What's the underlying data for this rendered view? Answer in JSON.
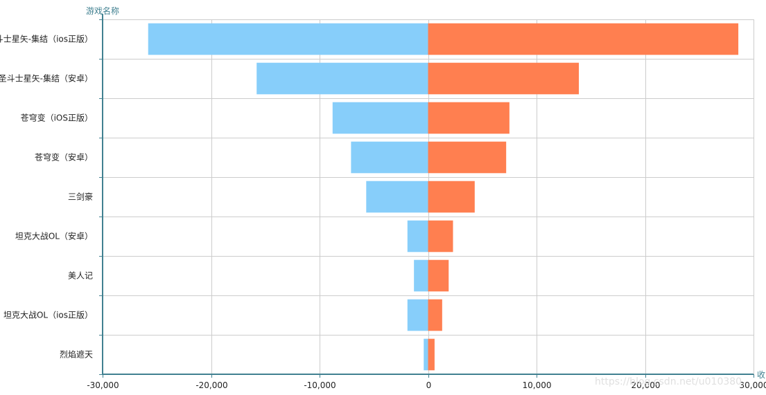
{
  "chart_data": {
    "type": "bar",
    "orientation": "horizontal",
    "layout": "diverging",
    "categories": [
      "圣斗士星矢-集结（ios正版）",
      "圣斗士星矢-集结（安卓）",
      "苍穹变（iOS正版）",
      "苍穹变（安卓）",
      "三剑豪",
      "坦克大战OL（安卓）",
      "美人记",
      "坦克大战OL（ios正版）",
      "烈焰遮天"
    ],
    "series": [
      {
        "color": "#87CEFA",
        "values": [
          -25800,
          -15800,
          -8800,
          -7100,
          -5700,
          -1900,
          -1300,
          -1900,
          -400
        ]
      },
      {
        "color": "#FF7F50",
        "values": [
          28600,
          13900,
          7500,
          7200,
          4300,
          2300,
          1900,
          1300,
          600
        ]
      }
    ],
    "x_ticks": [
      "-30,000",
      "-20,000",
      "-10,000",
      "0",
      "10,000",
      "20,000",
      "30,000"
    ],
    "xlim": [
      -30000,
      30000
    ],
    "xlabel": "收",
    "ylabel": "游戏名称",
    "axis_color": "#408090",
    "grid": true
  },
  "watermark": "https://blog.csdn.net/u010380..."
}
